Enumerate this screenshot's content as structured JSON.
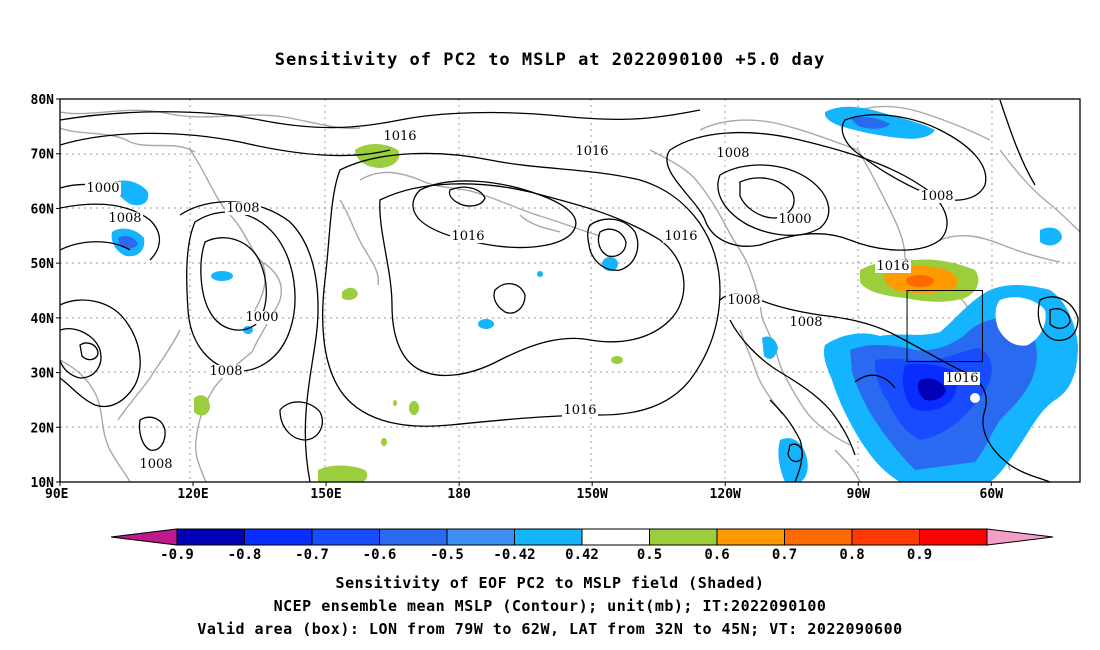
{
  "title": "Sensitivity of PC2 to MSLP at 2022090100 +5.0 day",
  "axes": {
    "lon_labels": [
      "90E",
      "120E",
      "150E",
      "180",
      "150W",
      "120W",
      "90W",
      "60W"
    ],
    "lat_labels": [
      "80N",
      "70N",
      "60N",
      "50N",
      "40N",
      "30N",
      "20N",
      "10N"
    ]
  },
  "contour_labels": [
    "1016",
    "1016",
    "1016",
    "1016",
    "1016",
    "1016",
    "1016",
    "1008",
    "1008",
    "1008",
    "1008",
    "1008",
    "1008",
    "1008",
    "1008",
    "1000",
    "1000",
    "1000"
  ],
  "valid_box": {
    "lon_min": -79,
    "lon_max": -62,
    "lat_min": 32,
    "lat_max": 45
  },
  "colorbar": {
    "labels": [
      "-0.9",
      "-0.8",
      "-0.7",
      "-0.6",
      "-0.5",
      "-0.42",
      "0.42",
      "0.5",
      "0.6",
      "0.7",
      "0.8",
      "0.9"
    ],
    "colors": [
      "#c2188e",
      "#0000b4",
      "#0a2dff",
      "#1a4cff",
      "#2a6af0",
      "#3d8ff5",
      "#14b4ff",
      "#ffffff",
      "#9ace3c",
      "#ff9b00",
      "#ff6a00",
      "#ff3a00",
      "#ff0000",
      "#f2a0c8"
    ]
  },
  "captions": [
    "Sensitivity of EOF PC2 to MSLP field (Shaded)",
    "NCEP ensemble mean MSLP (Contour); unit(mb); IT:2022090100",
    "Valid area (box): LON from 79W to 62W, LAT from 32N to 45N; VT: 2022090600"
  ]
}
